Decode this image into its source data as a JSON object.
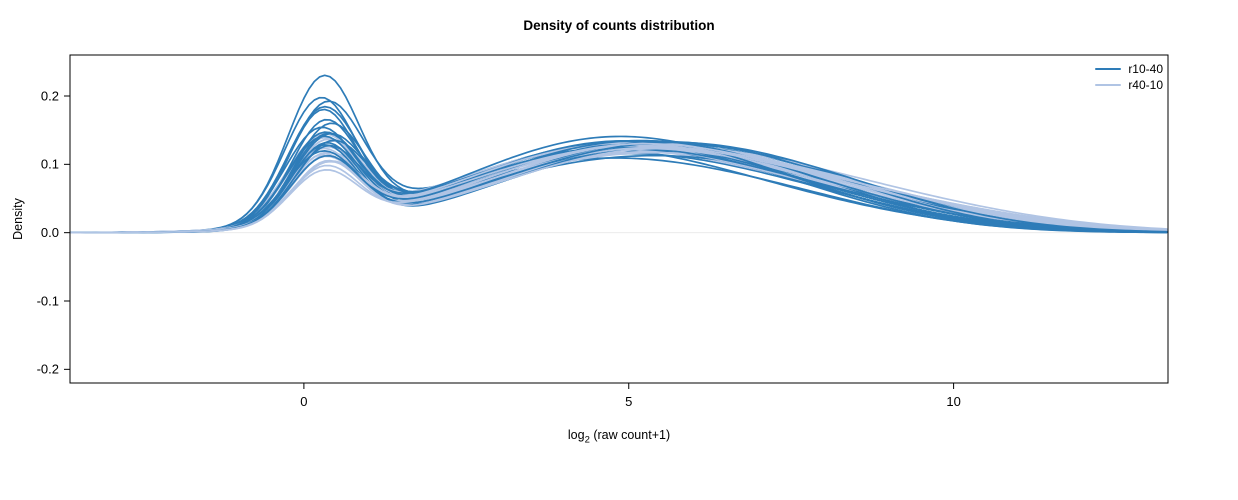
{
  "chart_data": {
    "type": "line",
    "subtype": "density-spaghetti",
    "title": "Density of counts distribution",
    "xlabel": "log2 (raw count+1)",
    "xlabel_parts": {
      "base": "log",
      "sub": "2",
      "rest": " (raw count+1)"
    },
    "ylabel": "Density",
    "xlim": [
      -3.6,
      13.3
    ],
    "ylim": [
      -0.22,
      0.26
    ],
    "xticks": [
      0,
      5,
      10
    ],
    "yticks": [
      -0.2,
      -0.1,
      0.0,
      0.1,
      0.2
    ],
    "grid": false,
    "zero_line_color": "#ebebeb",
    "box_color": "#000000",
    "legend": {
      "position": "top-right",
      "entries": [
        {
          "label": "r10-40",
          "color": "#2e7cb8"
        },
        {
          "label": "r40-10",
          "color": "#b0c4e4"
        }
      ]
    },
    "curve_model": "gaussian-mixture [w1,mu1,sd1,w2,mu2,sd2,w3,mu3,sd3] per curve; density(x)=sum wi*Normal(mui,sdi)",
    "x_step": 0.08,
    "groups": [
      {
        "name": "r10-40",
        "color": "#2e7cb8",
        "curves": [
          [
            0.29,
            0.3,
            0.55,
            0.52,
            4.2,
            2.2,
            0.19,
            7.2,
            2.0
          ],
          [
            0.25,
            0.25,
            0.55,
            0.53,
            4.4,
            2.2,
            0.22,
            7.3,
            2.1
          ],
          [
            0.24,
            0.35,
            0.56,
            0.54,
            4.1,
            2.1,
            0.22,
            7.0,
            2.2
          ],
          [
            0.23,
            0.3,
            0.55,
            0.53,
            4.5,
            2.3,
            0.24,
            7.5,
            2.0
          ],
          [
            0.21,
            0.28,
            0.52,
            0.55,
            4.3,
            2.2,
            0.24,
            7.1,
            2.1
          ],
          [
            0.2,
            0.4,
            0.55,
            0.55,
            4.7,
            2.2,
            0.25,
            7.4,
            2.1
          ],
          [
            0.19,
            0.32,
            0.52,
            0.56,
            4.2,
            2.1,
            0.25,
            6.9,
            2.0
          ],
          [
            0.19,
            0.25,
            0.55,
            0.57,
            4.5,
            2.2,
            0.24,
            7.2,
            2.2
          ],
          [
            0.18,
            0.35,
            0.54,
            0.56,
            4.9,
            2.2,
            0.26,
            7.7,
            2.0
          ],
          [
            0.18,
            0.3,
            0.55,
            0.57,
            4.4,
            2.1,
            0.25,
            7.0,
            2.1
          ],
          [
            0.17,
            0.38,
            0.55,
            0.57,
            4.3,
            2.2,
            0.26,
            7.4,
            2.2
          ],
          [
            0.17,
            0.28,
            0.54,
            0.58,
            4.6,
            2.2,
            0.25,
            7.1,
            2.0
          ],
          [
            0.16,
            0.33,
            0.53,
            0.58,
            5.0,
            2.2,
            0.26,
            7.8,
            2.1
          ],
          [
            0.16,
            0.42,
            0.55,
            0.58,
            4.4,
            2.1,
            0.26,
            7.2,
            2.2
          ],
          [
            0.15,
            0.3,
            0.52,
            0.59,
            4.8,
            2.2,
            0.26,
            7.5,
            2.0
          ],
          [
            0.14,
            0.35,
            0.52,
            0.6,
            4.3,
            2.1,
            0.26,
            6.9,
            2.1
          ],
          [
            0.14,
            0.27,
            0.54,
            0.6,
            4.6,
            2.2,
            0.26,
            7.3,
            2.2
          ],
          [
            0.13,
            0.33,
            0.53,
            0.6,
            4.9,
            2.3,
            0.27,
            7.6,
            2.1
          ]
        ]
      },
      {
        "name": "r40-10",
        "color": "#b0c4e4",
        "curves": [
          [
            0.18,
            0.32,
            0.55,
            0.53,
            4.5,
            2.2,
            0.29,
            7.8,
            2.3
          ],
          [
            0.18,
            0.28,
            0.56,
            0.52,
            4.3,
            2.1,
            0.3,
            7.6,
            2.4
          ],
          [
            0.17,
            0.36,
            0.55,
            0.53,
            4.7,
            2.2,
            0.3,
            8.0,
            2.3
          ],
          [
            0.17,
            0.3,
            0.56,
            0.54,
            4.4,
            2.2,
            0.29,
            7.5,
            2.4
          ],
          [
            0.16,
            0.4,
            0.55,
            0.54,
            4.6,
            2.3,
            0.3,
            7.9,
            2.3
          ],
          [
            0.16,
            0.33,
            0.54,
            0.55,
            4.3,
            2.1,
            0.29,
            7.4,
            2.4
          ],
          [
            0.15,
            0.28,
            0.54,
            0.55,
            4.8,
            2.2,
            0.3,
            8.1,
            2.4
          ],
          [
            0.15,
            0.35,
            0.55,
            0.56,
            4.5,
            2.2,
            0.29,
            7.6,
            2.3
          ],
          [
            0.14,
            0.3,
            0.54,
            0.56,
            4.2,
            2.2,
            0.3,
            7.3,
            2.5
          ],
          [
            0.14,
            0.38,
            0.55,
            0.57,
            4.7,
            2.2,
            0.29,
            7.9,
            2.3
          ],
          [
            0.13,
            0.32,
            0.53,
            0.57,
            4.5,
            2.3,
            0.3,
            7.7,
            2.4
          ],
          [
            0.13,
            0.28,
            0.52,
            0.58,
            4.6,
            2.2,
            0.29,
            7.8,
            2.3
          ],
          [
            0.12,
            0.35,
            0.52,
            0.58,
            5.0,
            2.3,
            0.3,
            8.2,
            2.4
          ],
          [
            0.12,
            0.3,
            0.52,
            0.59,
            4.4,
            2.2,
            0.29,
            7.5,
            2.4
          ],
          [
            0.12,
            0.38,
            0.55,
            0.58,
            4.7,
            2.3,
            0.3,
            7.9,
            2.3
          ],
          [
            0.11,
            0.32,
            0.52,
            0.59,
            4.8,
            2.2,
            0.3,
            8.0,
            2.4
          ],
          [
            0.11,
            0.35,
            0.53,
            0.6,
            4.5,
            2.3,
            0.29,
            7.7,
            2.3
          ],
          [
            0.1,
            0.3,
            0.52,
            0.6,
            4.7,
            2.2,
            0.3,
            8.1,
            2.4
          ]
        ]
      }
    ]
  }
}
